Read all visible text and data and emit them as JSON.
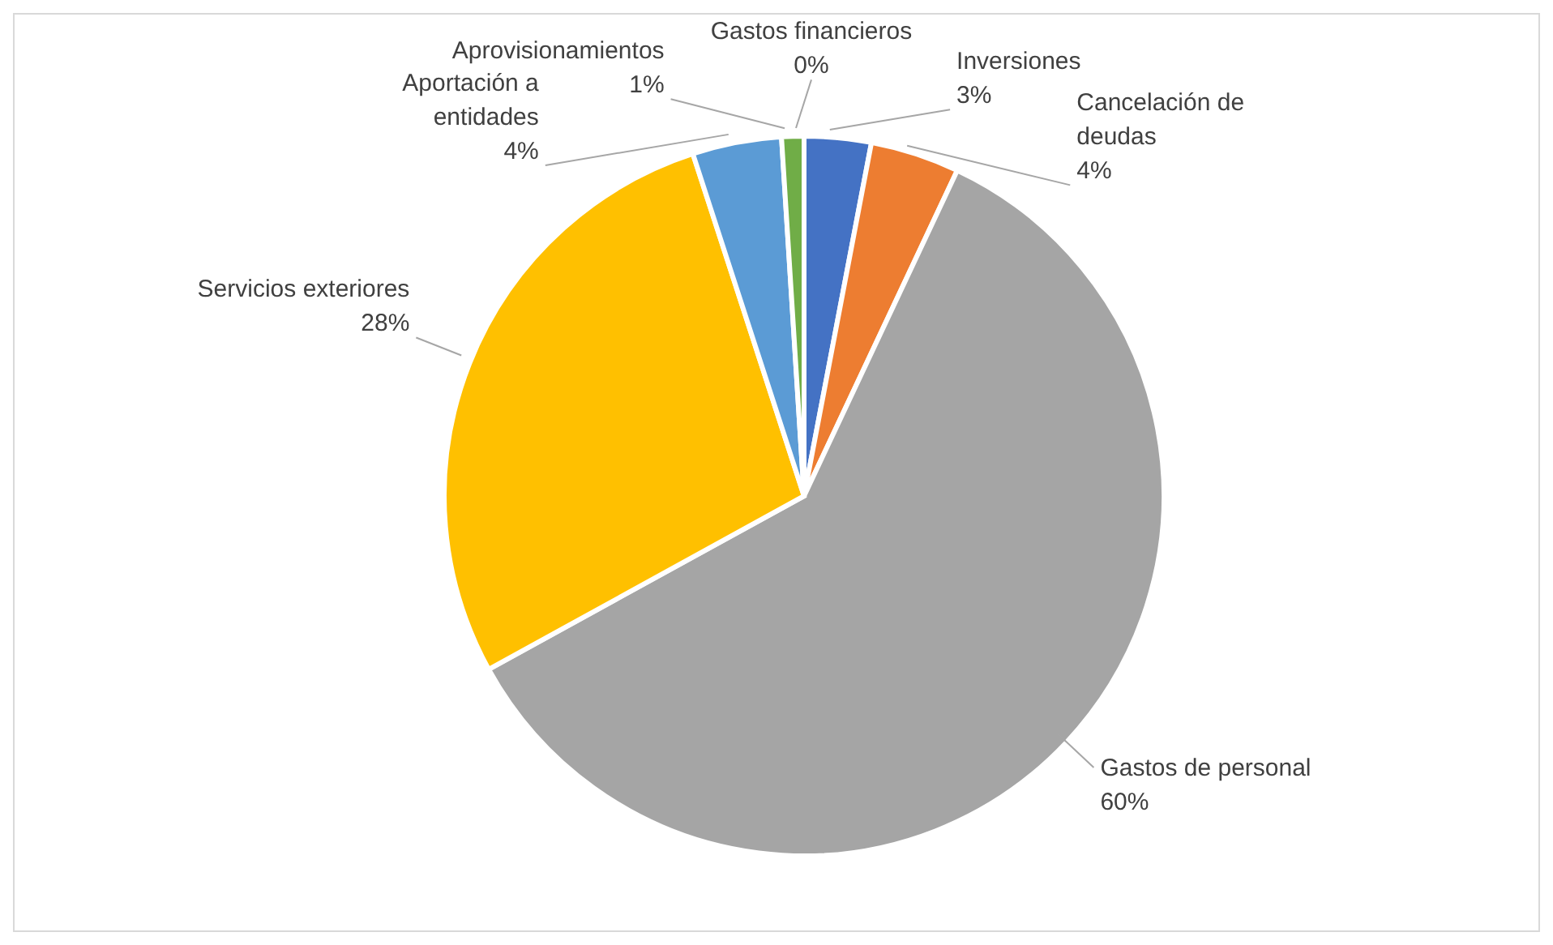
{
  "chart_data": {
    "type": "pie",
    "categories": [
      "Inversiones",
      "Cancelación de deudas",
      "Gastos de personal",
      "Servicios exteriores",
      "Aportación a entidades",
      "Aprovisionamientos",
      "Gastos financieros"
    ],
    "values": [
      3,
      4,
      60,
      28,
      4,
      1,
      0
    ],
    "value_labels": [
      "3%",
      "4%",
      "60%",
      "28%",
      "4%",
      "1%",
      "0%"
    ],
    "colors": [
      "#4472c4",
      "#ed7d31",
      "#a5a5a5",
      "#ffc000",
      "#5b9bd5",
      "#70ad47",
      "#264478"
    ],
    "legend": false
  }
}
